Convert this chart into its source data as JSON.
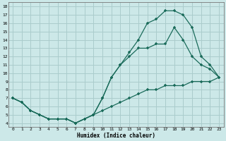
{
  "xlabel": "Humidex (Indice chaleur)",
  "bg_color": "#cce8e8",
  "grid_color": "#aacccc",
  "line_color": "#1a6b5a",
  "xlim": [
    -0.5,
    23.5
  ],
  "ylim": [
    3.5,
    18.5
  ],
  "xticks": [
    0,
    1,
    2,
    3,
    4,
    5,
    6,
    7,
    8,
    9,
    10,
    11,
    12,
    13,
    14,
    15,
    16,
    17,
    18,
    19,
    20,
    21,
    22,
    23
  ],
  "yticks": [
    4,
    5,
    6,
    7,
    8,
    9,
    10,
    11,
    12,
    13,
    14,
    15,
    16,
    17,
    18
  ],
  "line1_x": [
    0,
    1,
    2,
    3,
    4,
    5,
    6,
    7,
    8,
    9,
    10,
    11,
    12,
    13,
    14,
    15,
    16,
    17,
    18,
    19,
    20,
    21,
    22,
    23
  ],
  "line1_y": [
    7,
    6.5,
    5.5,
    5,
    4.5,
    4.5,
    4.5,
    4,
    4.5,
    5,
    5.5,
    6,
    6.5,
    7,
    7.5,
    8,
    8,
    8.5,
    8.5,
    8.5,
    9,
    9,
    9,
    9.5
  ],
  "line2_x": [
    0,
    1,
    2,
    3,
    4,
    5,
    6,
    7,
    8,
    9,
    10,
    11,
    12,
    13,
    14,
    15,
    16,
    17,
    18,
    19,
    20,
    21,
    22,
    23
  ],
  "line2_y": [
    7,
    6.5,
    5.5,
    5,
    4.5,
    4.5,
    4.5,
    4,
    4.5,
    5,
    7,
    9.5,
    11,
    12,
    13,
    13,
    13.5,
    13.5,
    15.5,
    14,
    12,
    11,
    10.5,
    9.5
  ],
  "line3_x": [
    0,
    1,
    2,
    3,
    4,
    5,
    6,
    7,
    8,
    9,
    10,
    11,
    12,
    13,
    14,
    15,
    16,
    17,
    18,
    19,
    20,
    21,
    22,
    23
  ],
  "line3_y": [
    7,
    6.5,
    5.5,
    5,
    4.5,
    4.5,
    4.5,
    4,
    4.5,
    5,
    7,
    9.5,
    11,
    12.5,
    14,
    16,
    16.5,
    17.5,
    17.5,
    17,
    15.5,
    12,
    11,
    9.5
  ]
}
